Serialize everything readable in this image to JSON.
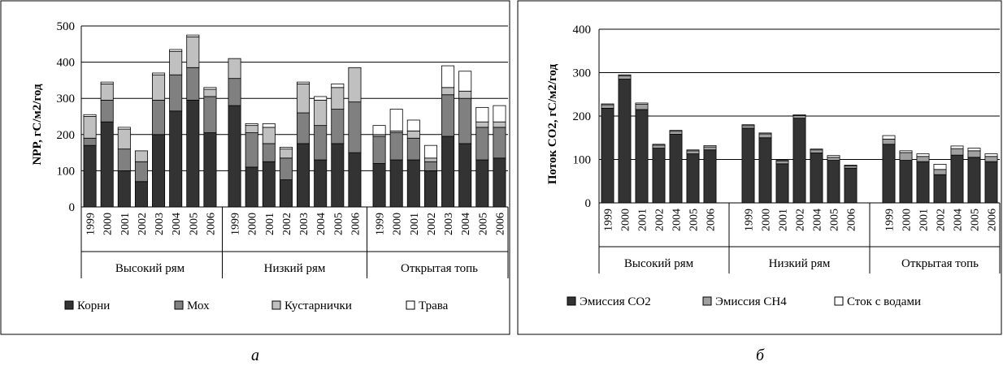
{
  "panel_labels": [
    "a",
    "б"
  ],
  "chart_data": [
    {
      "type": "bar",
      "stacked": true,
      "ylabel": "NPP, гС/м2/год",
      "ylim": [
        0,
        500
      ],
      "yticks": [
        0,
        100,
        200,
        300,
        400,
        500
      ],
      "grid": true,
      "legend_position": "bottom",
      "groups": [
        {
          "label": "Высокий рям",
          "categories": [
            "1999",
            "2000",
            "2001",
            "2002",
            "2003",
            "2004",
            "2005",
            "2006"
          ]
        },
        {
          "label": "Низкий рям",
          "categories": [
            "1999",
            "2000",
            "2001",
            "2002",
            "2003",
            "2004",
            "2005",
            "2006"
          ]
        },
        {
          "label": "Открытая топь",
          "categories": [
            "1999",
            "2000",
            "2001",
            "2002",
            "2003",
            "2004",
            "2005",
            "2006"
          ]
        }
      ],
      "series": [
        {
          "name": "Корни",
          "color": "#333333",
          "values": [
            170,
            235,
            100,
            70,
            200,
            265,
            295,
            205,
            280,
            110,
            125,
            75,
            175,
            130,
            175,
            150,
            120,
            130,
            130,
            100,
            195,
            175,
            130,
            135
          ]
        },
        {
          "name": "Мох",
          "color": "#808080",
          "values": [
            20,
            60,
            60,
            55,
            95,
            100,
            90,
            100,
            75,
            95,
            50,
            60,
            85,
            95,
            95,
            140,
            75,
            75,
            60,
            25,
            115,
            125,
            90,
            85
          ]
        },
        {
          "name": "Кустарнички",
          "color": "#c0c0c0",
          "values": [
            60,
            45,
            55,
            30,
            70,
            65,
            85,
            20,
            55,
            20,
            45,
            25,
            80,
            70,
            60,
            95,
            5,
            5,
            20,
            10,
            20,
            20,
            15,
            15
          ]
        },
        {
          "name": "Трава",
          "color": "#ffffff",
          "values": [
            5,
            5,
            5,
            0,
            5,
            5,
            5,
            5,
            0,
            5,
            10,
            5,
            5,
            10,
            10,
            0,
            25,
            60,
            30,
            35,
            60,
            55,
            40,
            45
          ]
        }
      ]
    },
    {
      "type": "bar",
      "stacked": true,
      "ylabel": "Поток CO2, гС/м2/год",
      "ylim": [
        0,
        400
      ],
      "yticks": [
        0,
        100,
        200,
        300,
        400
      ],
      "grid": true,
      "legend_position": "bottom",
      "groups": [
        {
          "label": "Высокий рям",
          "categories": [
            "1999",
            "2000",
            "2001",
            "2002",
            "2004",
            "2005",
            "2006"
          ]
        },
        {
          "label": "Низкий рям",
          "categories": [
            "1999",
            "2000",
            "2001",
            "2002",
            "2004",
            "2005",
            "2006"
          ]
        },
        {
          "label": "Открытая топь",
          "categories": [
            "1999",
            "2000",
            "2001",
            "2002",
            "2004",
            "2005",
            "2006"
          ]
        }
      ],
      "series": [
        {
          "name": "Эмиссия CO2",
          "color": "#333333",
          "values": [
            218,
            285,
            215,
            126,
            158,
            113,
            122,
            172,
            150,
            90,
            195,
            115,
            98,
            80,
            135,
            98,
            95,
            65,
            110,
            105,
            95
          ]
        },
        {
          "name": "Эмиссия CH4",
          "color": "#a0a0a0",
          "values": [
            8,
            8,
            12,
            7,
            7,
            7,
            7,
            6,
            9,
            6,
            6,
            7,
            7,
            5,
            12,
            18,
            12,
            12,
            15,
            15,
            12
          ]
        },
        {
          "name": "Сток с водами",
          "color": "#ffffff",
          "values": [
            2,
            2,
            3,
            2,
            2,
            2,
            3,
            2,
            2,
            2,
            2,
            2,
            4,
            2,
            8,
            4,
            6,
            12,
            6,
            6,
            6
          ]
        }
      ]
    }
  ]
}
